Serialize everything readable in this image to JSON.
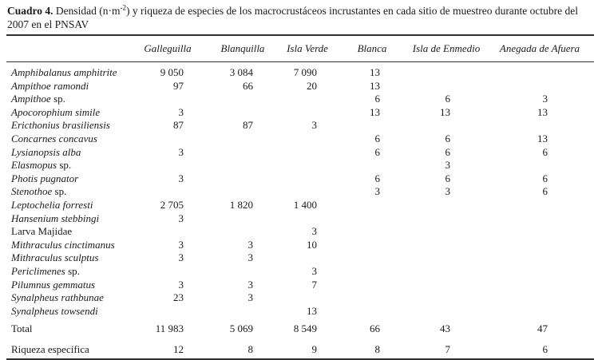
{
  "caption": {
    "label": "Cuadro 4.",
    "pre_sup": " Densidad (n·m",
    "sup": "-2",
    "post_sup": ") y riqueza de especies de los macrocrustáceos incrustantes en cada sitio de muestreo durante octubre del 2007 en el PNSAV"
  },
  "table": {
    "columns": [
      "Galleguilla",
      "Blanquilla",
      "Isla Verde",
      "Blanca",
      "Isla de Enmedio",
      "Anegada de Afuera"
    ],
    "rows": [
      {
        "italic": "Amphibalanus amphitrite",
        "roman": "",
        "values": [
          "9 050",
          "3 084",
          "7 090",
          "13",
          "",
          ""
        ]
      },
      {
        "italic": "Ampithoe ramondi",
        "roman": "",
        "values": [
          "97",
          "66",
          "20",
          "13",
          "",
          ""
        ]
      },
      {
        "italic": "Ampithoe",
        "roman": " sp.",
        "values": [
          "",
          "",
          "",
          "6",
          "6",
          "3"
        ]
      },
      {
        "italic": "Apocorophium simile",
        "roman": "",
        "values": [
          "3",
          "",
          "",
          "13",
          "13",
          "13"
        ]
      },
      {
        "italic": "Ericthonius brasiliensis",
        "roman": "",
        "values": [
          "87",
          "87",
          "3",
          "",
          "",
          ""
        ]
      },
      {
        "italic": "Concarnes concavus",
        "roman": "",
        "values": [
          "",
          "",
          "",
          "6",
          "6",
          "13"
        ]
      },
      {
        "italic": "Lysianopsis alba",
        "roman": "",
        "values": [
          "3",
          "",
          "",
          "6",
          "6",
          "6"
        ]
      },
      {
        "italic": "Elasmopus",
        "roman": " sp.",
        "values": [
          "",
          "",
          "",
          "",
          "3",
          ""
        ]
      },
      {
        "italic": "Photis pugnator",
        "roman": "",
        "values": [
          "3",
          "",
          "",
          "6",
          "6",
          "6"
        ]
      },
      {
        "italic": "Stenothoe",
        "roman": " sp.",
        "values": [
          "",
          "",
          "",
          "3",
          "3",
          "6"
        ]
      },
      {
        "italic": "Leptochelia forresti",
        "roman": "",
        "values": [
          "2 705",
          "1 820",
          "1 400",
          "",
          "",
          ""
        ]
      },
      {
        "italic": "Hansenium stebbingi",
        "roman": "",
        "values": [
          "3",
          "",
          "",
          "",
          "",
          ""
        ]
      },
      {
        "italic": "",
        "roman": "Larva Majidae",
        "values": [
          "",
          "",
          "3",
          "",
          "",
          ""
        ]
      },
      {
        "italic": "Mithraculus cinctimanus",
        "roman": "",
        "values": [
          "3",
          "3",
          "10",
          "",
          "",
          ""
        ]
      },
      {
        "italic": "Mithraculus sculptus",
        "roman": "",
        "values": [
          "3",
          "3",
          "",
          "",
          "",
          ""
        ]
      },
      {
        "italic": "Periclimenes",
        "roman": " sp.",
        "values": [
          "",
          "",
          "3",
          "",
          "",
          ""
        ]
      },
      {
        "italic": "Pilumnus gemmatus",
        "roman": "",
        "values": [
          "3",
          "3",
          "7",
          "",
          "",
          ""
        ]
      },
      {
        "italic": "Synalpheus rathbunae",
        "roman": "",
        "values": [
          "23",
          "3",
          "",
          "",
          "",
          ""
        ]
      },
      {
        "italic": "Synalpheus towsendi",
        "roman": "",
        "values": [
          "",
          "",
          "13",
          "",
          "",
          ""
        ]
      }
    ],
    "total": {
      "label": "Total",
      "values": [
        "11 983",
        "5 069",
        "8 549",
        "66",
        "43",
        "47"
      ]
    },
    "richness": {
      "label": "Riqueza específica",
      "values": [
        "12",
        "8",
        "9",
        "8",
        "7",
        "6"
      ]
    }
  }
}
